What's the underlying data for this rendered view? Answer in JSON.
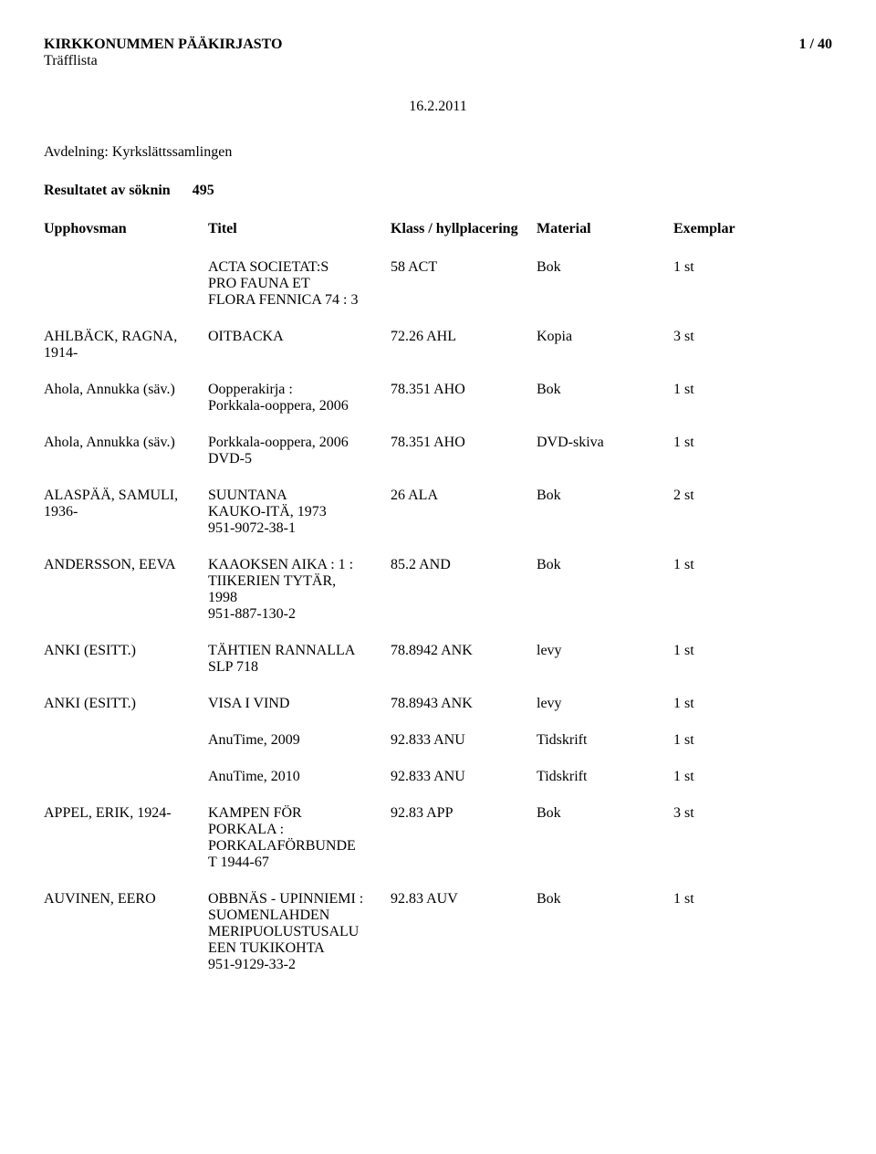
{
  "header": {
    "title": "KIRKKONUMMEN PÄÄKIRJASTO",
    "subtitle": "Träfflista",
    "page_indicator": "1 / 40",
    "date": "16.2.2011"
  },
  "section": {
    "label_prefix": "Avdelning:",
    "label_value": "Kyrkslättssamlingen"
  },
  "result": {
    "label": "Resultatet av söknin",
    "count": "495"
  },
  "columns": {
    "author": "Upphovsman",
    "title": "Titel",
    "class": "Klass / hyllplacering",
    "material": "Material",
    "copies": "Exemplar"
  },
  "rows": [
    {
      "author": "",
      "title_lines": [
        "ACTA SOCIETAT:S",
        "PRO FAUNA ET",
        "FLORA FENNICA 74 : 3"
      ],
      "class": "58 ACT",
      "material": "Bok",
      "copies": "1 st"
    },
    {
      "author": "AHLBÄCK, RAGNA, 1914-",
      "title_lines": [
        "OITBACKA"
      ],
      "class": "72.26 AHL",
      "material": "Kopia",
      "copies": "3 st"
    },
    {
      "author": "Ahola, Annukka (säv.)",
      "title_lines": [
        "Oopperakirja :",
        "Porkkala-ooppera, 2006"
      ],
      "class": "78.351 AHO",
      "material": "Bok",
      "copies": "1 st"
    },
    {
      "author": "Ahola, Annukka (säv.)",
      "title_lines": [
        "Porkkala-ooppera, 2006",
        "DVD-5"
      ],
      "class": "78.351 AHO",
      "material": "DVD-skiva",
      "copies": "1 st"
    },
    {
      "author": "ALASPÄÄ, SAMULI, 1936-",
      "title_lines": [
        "SUUNTANA",
        "KAUKO-ITÄ, 1973",
        "951-9072-38-1"
      ],
      "class": "26 ALA",
      "material": "Bok",
      "copies": "2 st"
    },
    {
      "author": "ANDERSSON, EEVA",
      "title_lines": [
        "KAAOKSEN AIKA : 1 :",
        "TIIKERIEN TYTÄR,",
        "1998",
        "951-887-130-2"
      ],
      "class": "85.2 AND",
      "material": "Bok",
      "copies": "1 st"
    },
    {
      "author": "ANKI (ESITT.)",
      "title_lines": [
        "TÄHTIEN RANNALLA",
        "SLP 718"
      ],
      "class": "78.8942 ANK",
      "material": "levy",
      "copies": "1 st"
    },
    {
      "author": "ANKI (ESITT.)",
      "title_lines": [
        "VISA I VIND"
      ],
      "class": "78.8943 ANK",
      "material": "levy",
      "copies": "1 st"
    },
    {
      "author": "",
      "title_lines": [
        "AnuTime, 2009"
      ],
      "class": "92.833 ANU",
      "material": "Tidskrift",
      "copies": "1 st"
    },
    {
      "author": "",
      "title_lines": [
        "AnuTime, 2010"
      ],
      "class": "92.833 ANU",
      "material": "Tidskrift",
      "copies": "1 st"
    },
    {
      "author": "APPEL, ERIK, 1924-",
      "title_lines": [
        "KAMPEN FÖR",
        "PORKALA :",
        "PORKALAFÖRBUNDE",
        "T 1944-67"
      ],
      "class": "92.83 APP",
      "material": "Bok",
      "copies": "3 st"
    },
    {
      "author": "AUVINEN, EERO",
      "title_lines": [
        "OBBNÄS - UPINNIEMI :",
        "SUOMENLAHDEN",
        "MERIPUOLUSTUSALU",
        "EEN TUKIKOHTA",
        "951-9129-33-2"
      ],
      "class": "92.83 AUV",
      "material": "Bok",
      "copies": "1 st"
    }
  ]
}
